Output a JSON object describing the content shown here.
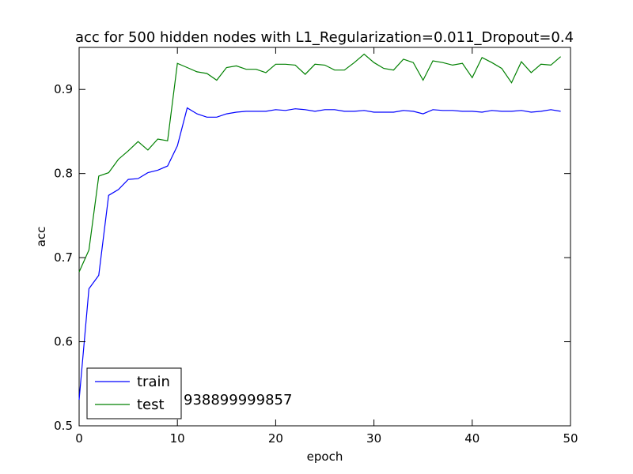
{
  "chart_data": {
    "type": "line",
    "title": "acc for 500 hidden nodes with L1_Regularization=0.011_Dropout=0.4",
    "xlabel": "epoch",
    "ylabel": "acc",
    "xlim": [
      0,
      50
    ],
    "ylim": [
      0.5,
      0.95
    ],
    "xticks": [
      0,
      10,
      20,
      30,
      40,
      50
    ],
    "yticks": [
      0.5,
      0.6,
      0.7,
      0.8,
      0.9
    ],
    "grid": false,
    "legend_position": "lower-left",
    "annotation": "938899999857",
    "series": [
      {
        "name": "train",
        "color": "#0000ff",
        "x": [
          0,
          1,
          2,
          3,
          4,
          5,
          6,
          7,
          8,
          9,
          10,
          11,
          12,
          13,
          14,
          15,
          16,
          17,
          18,
          19,
          20,
          21,
          22,
          23,
          24,
          25,
          26,
          27,
          28,
          29,
          30,
          31,
          32,
          33,
          34,
          35,
          36,
          37,
          38,
          39,
          40,
          41,
          42,
          43,
          44,
          45,
          46,
          47,
          48,
          49
        ],
        "values": [
          0.531,
          0.663,
          0.679,
          0.774,
          0.781,
          0.793,
          0.794,
          0.801,
          0.804,
          0.809,
          0.833,
          0.878,
          0.871,
          0.867,
          0.867,
          0.871,
          0.873,
          0.874,
          0.874,
          0.874,
          0.876,
          0.875,
          0.877,
          0.876,
          0.874,
          0.876,
          0.876,
          0.874,
          0.874,
          0.875,
          0.873,
          0.873,
          0.873,
          0.875,
          0.874,
          0.871,
          0.876,
          0.875,
          0.875,
          0.874,
          0.874,
          0.873,
          0.875,
          0.874,
          0.874,
          0.875,
          0.873,
          0.874,
          0.876,
          0.874
        ]
      },
      {
        "name": "test",
        "color": "#008000",
        "x": [
          0,
          1,
          2,
          3,
          4,
          5,
          6,
          7,
          8,
          9,
          10,
          11,
          12,
          13,
          14,
          15,
          16,
          17,
          18,
          19,
          20,
          21,
          22,
          23,
          24,
          25,
          26,
          27,
          28,
          29,
          30,
          31,
          32,
          33,
          34,
          35,
          36,
          37,
          38,
          39,
          40,
          41,
          42,
          43,
          44,
          45,
          46,
          47,
          48,
          49
        ],
        "values": [
          0.683,
          0.709,
          0.797,
          0.801,
          0.817,
          0.827,
          0.838,
          0.828,
          0.841,
          0.839,
          0.931,
          0.926,
          0.921,
          0.919,
          0.911,
          0.926,
          0.928,
          0.924,
          0.924,
          0.92,
          0.93,
          0.93,
          0.929,
          0.918,
          0.93,
          0.929,
          0.923,
          0.923,
          0.932,
          0.942,
          0.932,
          0.925,
          0.923,
          0.936,
          0.932,
          0.911,
          0.934,
          0.932,
          0.929,
          0.931,
          0.914,
          0.938,
          0.932,
          0.925,
          0.908,
          0.933,
          0.92,
          0.93,
          0.929,
          0.939
        ]
      }
    ]
  }
}
